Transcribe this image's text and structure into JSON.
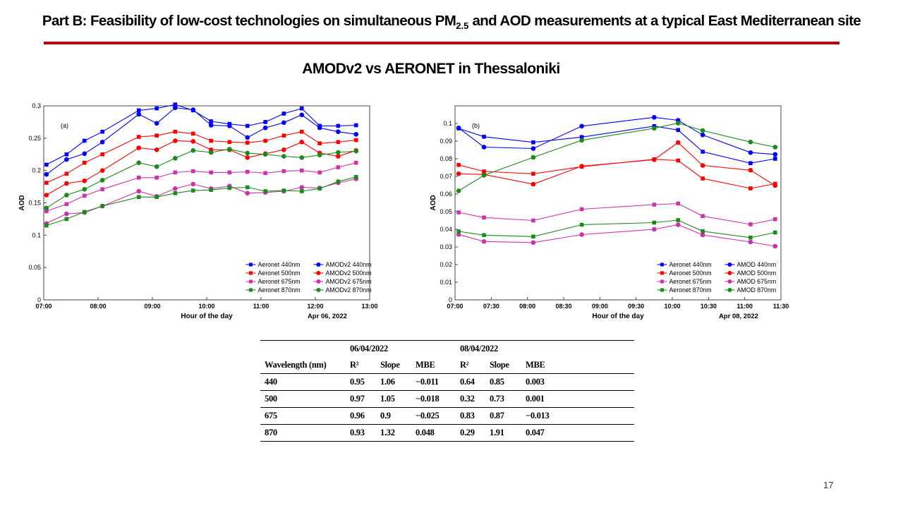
{
  "slide": {
    "title_prefix": "Part B: Feasibility of low-cost technologies on simultaneous PM",
    "title_sub": "2.5",
    "title_suffix": " and AOD measurements at a typical East Mediterranean site",
    "subtitle": "AMODv2 vs AERONET in Thessaloniki",
    "page_number": "17"
  },
  "colors": {
    "accent_rule": "#c00000",
    "s440": "#0000ff",
    "s500": "#ff0000",
    "s675": "#cc33aa",
    "s870": "#1a8a1a"
  },
  "chart_data": [
    {
      "type": "line",
      "panel_label": "(a)",
      "xlabel": "Hour of the day",
      "ylabel": "AOD",
      "date_label": "Apr 06, 2022",
      "xlim": [
        7.0,
        13.0
      ],
      "ylim": [
        0,
        0.3
      ],
      "xticks": [
        7,
        8,
        9,
        10,
        11,
        12,
        13
      ],
      "xtick_labels": [
        "07:00",
        "08:00",
        "09:00",
        "10:00",
        "11:00",
        "12:00",
        "13:00"
      ],
      "yticks": [
        0,
        0.05,
        0.1,
        0.15,
        0.2,
        0.25,
        0.3
      ],
      "ytick_labels": [
        "0",
        "0.05",
        "0.1",
        "0.15",
        "0.2",
        "0.25",
        "0.3"
      ],
      "legend_position": "bottom-right",
      "x": [
        7.05,
        7.42,
        7.75,
        8.08,
        8.75,
        9.08,
        9.42,
        9.75,
        10.08,
        10.42,
        10.75,
        11.08,
        11.42,
        11.75,
        12.08,
        12.42,
        12.75
      ],
      "series": [
        {
          "name": "Aeronet 440nm",
          "marker": "square",
          "color": "#0000ff",
          "values": [
            0.209,
            0.225,
            0.246,
            0.26,
            0.293,
            0.296,
            0.302,
            0.293,
            0.276,
            0.272,
            0.269,
            0.275,
            0.288,
            0.296,
            0.269,
            0.269,
            0.27
          ]
        },
        {
          "name": "AMODv2 440nm",
          "marker": "circle",
          "color": "#0000ff",
          "values": [
            0.194,
            0.217,
            0.226,
            0.244,
            0.287,
            0.273,
            0.297,
            0.294,
            0.27,
            0.269,
            0.251,
            0.266,
            0.274,
            0.286,
            0.266,
            0.26,
            0.256
          ]
        },
        {
          "name": "Aeronet 500nm",
          "marker": "square",
          "color": "#ff0000",
          "values": [
            0.181,
            0.195,
            0.212,
            0.225,
            0.252,
            0.254,
            0.26,
            0.257,
            0.246,
            0.244,
            0.243,
            0.246,
            0.254,
            0.26,
            0.242,
            0.244,
            0.247
          ]
        },
        {
          "name": "AMODv2 500nm",
          "marker": "circle",
          "color": "#ff0000",
          "values": [
            0.162,
            0.18,
            0.184,
            0.2,
            0.235,
            0.232,
            0.246,
            0.245,
            0.232,
            0.232,
            0.22,
            0.226,
            0.232,
            0.244,
            0.227,
            0.222,
            0.231
          ]
        },
        {
          "name": "Aeronet 675nm",
          "marker": "square",
          "color": "#cc33aa",
          "values": [
            0.137,
            0.148,
            0.161,
            0.171,
            0.189,
            0.189,
            0.197,
            0.199,
            0.197,
            0.197,
            0.198,
            0.196,
            0.199,
            0.2,
            0.197,
            0.205,
            0.212
          ]
        },
        {
          "name": "AMODv2 675nm",
          "marker": "circle",
          "color": "#cc33aa",
          "values": [
            0.118,
            0.133,
            0.135,
            0.145,
            0.168,
            0.16,
            0.172,
            0.179,
            0.172,
            0.176,
            0.165,
            0.166,
            0.168,
            0.174,
            0.173,
            0.181,
            0.187
          ]
        },
        {
          "name": "Aeronet 870nm",
          "marker": "square",
          "color": "#1a8a1a",
          "values": [
            0.115,
            0.125,
            0.136,
            0.145,
            0.159,
            0.159,
            0.165,
            0.169,
            0.17,
            0.173,
            0.174,
            0.168,
            0.169,
            0.168,
            0.172,
            0.183,
            0.19
          ]
        },
        {
          "name": "AMODv2 870nm",
          "marker": "circle",
          "color": "#1a8a1a",
          "values": [
            0.142,
            0.162,
            0.171,
            0.185,
            0.212,
            0.206,
            0.219,
            0.231,
            0.228,
            0.233,
            0.227,
            0.225,
            0.222,
            0.22,
            0.224,
            0.228,
            0.23
          ]
        }
      ]
    },
    {
      "type": "line",
      "panel_label": "(b)",
      "xlabel": "Hour of the day",
      "ylabel": "AOD",
      "date_label": "Apr 08, 2022",
      "xlim": [
        7.0,
        11.5
      ],
      "ylim": [
        0,
        0.11
      ],
      "xticks": [
        7.0,
        7.5,
        8.0,
        8.5,
        9.0,
        9.5,
        10.0,
        10.5,
        11.0,
        11.5
      ],
      "xtick_labels": [
        "07:00",
        "07:30",
        "08:00",
        "08:30",
        "09:00",
        "09:30",
        "10:00",
        "10:30",
        "11:00",
        "11:30"
      ],
      "yticks": [
        0,
        0.01,
        0.02,
        0.03,
        0.04,
        0.05,
        0.06,
        0.07,
        0.08,
        0.09,
        0.1
      ],
      "ytick_labels": [
        "0",
        "0.01",
        "0.02",
        "0.03",
        "0.04",
        "0.05",
        "0.06",
        "0.07",
        "0.08",
        "0.09",
        "0.1"
      ],
      "legend_position": "bottom-right",
      "x": [
        7.05,
        7.4,
        8.08,
        8.75,
        9.75,
        10.08,
        10.42,
        11.08,
        11.42
      ],
      "series": [
        {
          "name": "Aeronet 440nm",
          "marker": "square",
          "color": "#0000ff",
          "values": [
            0.0972,
            0.0925,
            0.0893,
            0.0923,
            0.0985,
            0.0963,
            0.084,
            0.0775,
            0.08
          ]
        },
        {
          "name": "AMOD 440nm",
          "marker": "circle",
          "color": "#0000ff",
          "values": [
            0.0975,
            0.0866,
            0.0858,
            0.0985,
            0.1035,
            0.1018,
            0.0935,
            0.0835,
            0.0825
          ]
        },
        {
          "name": "Aeronet 500nm",
          "marker": "square",
          "color": "#ff0000",
          "values": [
            0.0765,
            0.0728,
            0.0715,
            0.0755,
            0.0797,
            0.079,
            0.0688,
            0.0632,
            0.0658
          ]
        },
        {
          "name": "AMOD 500nm",
          "marker": "circle",
          "color": "#ff0000",
          "values": [
            0.0715,
            0.0711,
            0.0656,
            0.0758,
            0.0795,
            0.0892,
            0.0762,
            0.0735,
            0.0648
          ]
        },
        {
          "name": "Aeronet 675nm",
          "marker": "square",
          "color": "#cc33aa",
          "values": [
            0.0496,
            0.0467,
            0.045,
            0.0514,
            0.054,
            0.0546,
            0.0475,
            0.0428,
            0.0457
          ]
        },
        {
          "name": "AMOD 675nm",
          "marker": "circle",
          "color": "#cc33aa",
          "values": [
            0.0371,
            0.0331,
            0.0325,
            0.037,
            0.04,
            0.0426,
            0.0368,
            0.0328,
            0.0304
          ]
        },
        {
          "name": "Aeronet 870nm",
          "marker": "square",
          "color": "#1a8a1a",
          "values": [
            0.0388,
            0.0367,
            0.0359,
            0.0426,
            0.0438,
            0.0452,
            0.0389,
            0.0353,
            0.0382
          ]
        },
        {
          "name": "AMOD 870nm",
          "marker": "circle",
          "color": "#1a8a1a",
          "values": [
            0.0618,
            0.0706,
            0.0808,
            0.0905,
            0.0973,
            0.1002,
            0.096,
            0.0895,
            0.0866
          ]
        }
      ]
    }
  ],
  "table": {
    "date1": "06/04/2022",
    "date2": "08/04/2022",
    "headers": [
      "Wavelength (nm)",
      "R²",
      "Slope",
      "MBE",
      "R²",
      "Slope",
      "MBE"
    ],
    "rows": [
      [
        "440",
        "0.95",
        "1.06",
        "−0.011",
        "0.64",
        "0.85",
        "0.003"
      ],
      [
        "500",
        "0.97",
        "1.05",
        "−0.018",
        "0.32",
        "0.73",
        "0.001"
      ],
      [
        "675",
        "0.96",
        "0.9",
        "−0.025",
        "0.83",
        "0.87",
        "−0.013"
      ],
      [
        "870",
        "0.93",
        "1.32",
        "0.048",
        "0.29",
        "1.91",
        "0.047"
      ]
    ]
  }
}
